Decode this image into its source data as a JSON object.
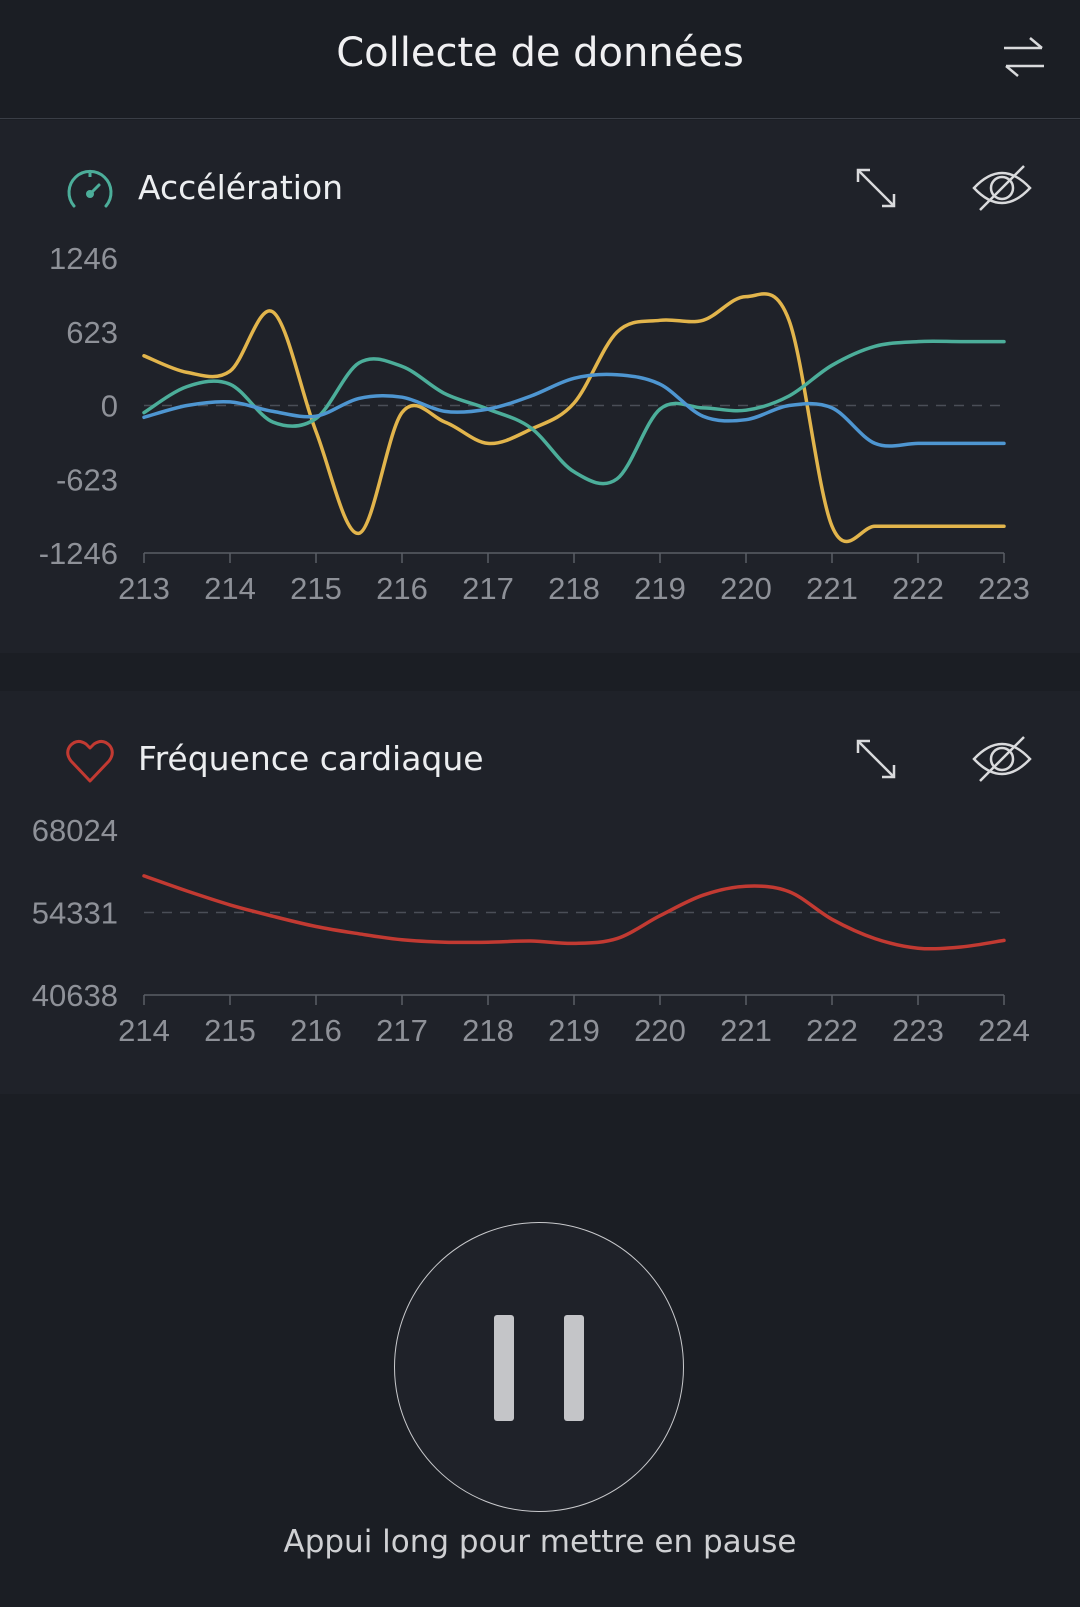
{
  "header": {
    "title": "Collecte de données",
    "swap_icon": "swap-arrows-icon"
  },
  "accel_card": {
    "title": "Accélération",
    "icon": "gauge-icon",
    "accent": "#4cae9a",
    "expand_icon": "expand-icon",
    "hide_icon": "eye-off-icon"
  },
  "heart_card": {
    "title": "Fréquence cardiaque",
    "icon": "heart-icon",
    "accent": "#c23a32",
    "expand_icon": "expand-icon",
    "hide_icon": "eye-off-icon"
  },
  "pause": {
    "hint": "Appui long pour mettre en pause",
    "icon": "pause-icon"
  },
  "chart_data": [
    {
      "type": "line",
      "title": "",
      "xlabel": "",
      "ylabel": "",
      "x": [
        213,
        213.5,
        214,
        214.5,
        215,
        215.5,
        216,
        216.5,
        217,
        217.5,
        218,
        218.5,
        219,
        219.5,
        220,
        220.5,
        221,
        221.5,
        222,
        222.5,
        223
      ],
      "xticks": [
        "213",
        "214",
        "215",
        "216",
        "217",
        "218",
        "219",
        "220",
        "221",
        "222",
        "223"
      ],
      "yticks": [
        "1246",
        "623",
        "0",
        "-623",
        "-1246"
      ],
      "ylim": [
        -1246,
        1246
      ],
      "grid": "dashed zero line",
      "series": [
        {
          "color": "#e2b54c",
          "values": [
            420,
            280,
            290,
            790,
            -220,
            -1080,
            -60,
            -140,
            -320,
            -200,
            20,
            620,
            720,
            720,
            920,
            720,
            -1020,
            -1020,
            -1020,
            -1020,
            -1020
          ]
        },
        {
          "color": "#4cae9a",
          "values": [
            -60,
            160,
            180,
            -140,
            -110,
            360,
            330,
            100,
            -30,
            -190,
            -560,
            -620,
            -30,
            -20,
            -40,
            80,
            340,
            500,
            540,
            540,
            540
          ]
        },
        {
          "color": "#4e96d1",
          "values": [
            -100,
            0,
            30,
            -50,
            -90,
            60,
            70,
            -50,
            -30,
            80,
            230,
            260,
            180,
            -90,
            -120,
            0,
            -20,
            -320,
            -320,
            -320,
            -320
          ]
        }
      ]
    },
    {
      "type": "line",
      "title": "",
      "xlabel": "",
      "ylabel": "",
      "x": [
        214,
        214.5,
        215,
        215.5,
        216,
        216.5,
        217,
        217.5,
        218,
        218.5,
        219,
        219.5,
        220,
        220.5,
        221,
        221.5,
        222,
        222.5,
        223,
        223.5,
        224
      ],
      "xticks": [
        "214",
        "215",
        "216",
        "217",
        "218",
        "219",
        "220",
        "221",
        "222",
        "223",
        "224"
      ],
      "yticks": [
        "68024",
        "54331",
        "40638"
      ],
      "ylim": [
        40638,
        68024
      ],
      "grid": "dashed midline",
      "series": [
        {
          "color": "#c23a32",
          "values": [
            60400,
            57900,
            55600,
            53700,
            52000,
            50800,
            49800,
            49400,
            49400,
            49600,
            49200,
            50000,
            53800,
            57200,
            58700,
            57800,
            53200,
            50000,
            48400,
            48600,
            49700
          ]
        }
      ]
    }
  ]
}
